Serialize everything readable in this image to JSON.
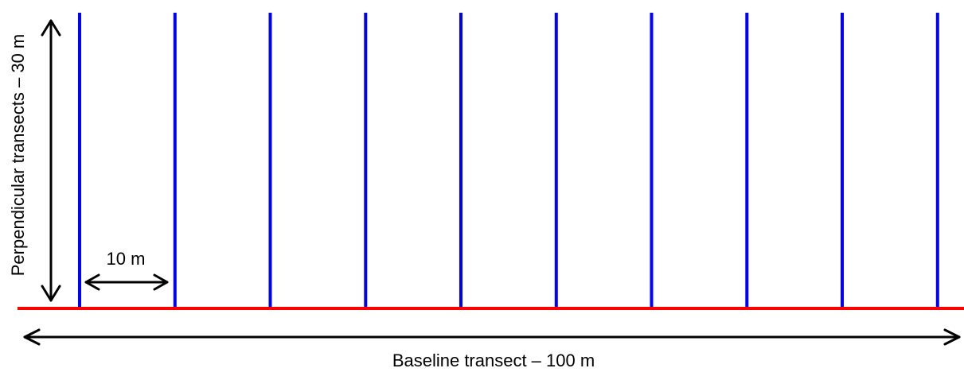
{
  "diagram": {
    "labels": {
      "baseline": "Baseline transect – 100 m",
      "perpendicular": "Perpendicular transects – 30 m",
      "spacing": "10 m"
    },
    "baseline": {
      "length_m": 100,
      "color": "#ff0000"
    },
    "perpendicular_transects": {
      "count": 10,
      "length_m": 30,
      "spacing_m": 10,
      "color": "#0000ff"
    },
    "arrow_color": "#000000"
  }
}
